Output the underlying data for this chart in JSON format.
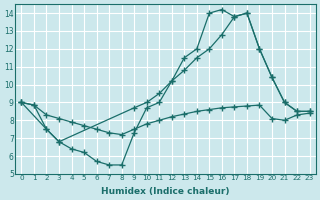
{
  "xlabel": "Humidex (Indice chaleur)",
  "bg_color": "#cce8ec",
  "grid_color": "#ffffff",
  "line_color": "#1a6e6a",
  "line1_x": [
    0,
    1,
    2,
    3,
    4,
    5,
    6,
    7,
    8,
    9,
    10,
    11,
    12,
    13,
    14,
    15,
    16,
    17,
    18,
    19,
    20,
    21,
    22,
    23
  ],
  "line1_y": [
    9.0,
    8.85,
    7.5,
    6.8,
    6.4,
    6.2,
    5.7,
    5.5,
    5.5,
    7.3,
    8.7,
    9.0,
    10.2,
    11.5,
    12.0,
    14.0,
    14.2,
    13.8,
    14.0,
    12.0,
    10.4,
    9.0,
    8.5,
    8.5
  ],
  "line2_x": [
    0,
    2,
    3,
    9,
    10,
    11,
    12,
    13,
    14,
    15,
    16,
    17,
    18,
    19,
    20,
    21,
    22,
    23
  ],
  "line2_y": [
    9.0,
    7.5,
    6.8,
    8.7,
    9.0,
    9.5,
    10.2,
    10.8,
    11.5,
    12.0,
    12.8,
    13.8,
    14.0,
    12.0,
    10.4,
    9.0,
    8.5,
    8.5
  ],
  "line3_x": [
    0,
    1,
    2,
    3,
    4,
    5,
    6,
    7,
    8,
    9,
    10,
    11,
    12,
    13,
    14,
    15,
    16,
    17,
    18,
    19,
    20,
    21,
    22,
    23
  ],
  "line3_y": [
    9.0,
    8.85,
    8.3,
    8.1,
    7.9,
    7.7,
    7.5,
    7.3,
    7.2,
    7.5,
    7.8,
    8.0,
    8.2,
    8.35,
    8.5,
    8.6,
    8.7,
    8.75,
    8.8,
    8.85,
    8.1,
    8.0,
    8.3,
    8.4
  ],
  "xlim": [
    -0.5,
    23.5
  ],
  "ylim": [
    5,
    14.5
  ],
  "xticks": [
    0,
    1,
    2,
    3,
    4,
    5,
    6,
    7,
    8,
    9,
    10,
    11,
    12,
    13,
    14,
    15,
    16,
    17,
    18,
    19,
    20,
    21,
    22,
    23
  ],
  "yticks": [
    5,
    6,
    7,
    8,
    9,
    10,
    11,
    12,
    13,
    14
  ]
}
